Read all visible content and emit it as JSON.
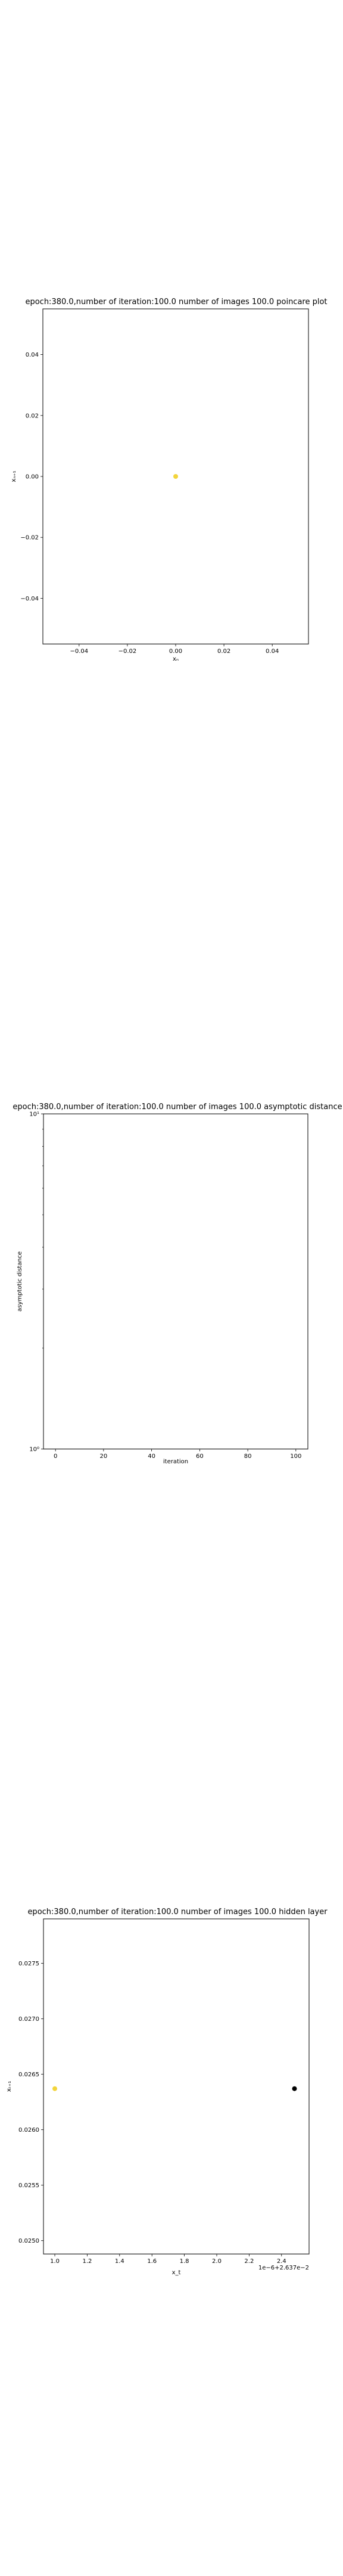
{
  "chart_data": [
    {
      "type": "scatter",
      "title": "epoch:380.0,number of iteration:100.0 number of images 100.0 poincare plot",
      "xlabel": "xₙ",
      "ylabel": "xₙ₊₁",
      "xlim": [
        -0.055,
        0.055
      ],
      "ylim": [
        -0.055,
        0.055
      ],
      "xticks": [
        -0.04,
        -0.02,
        0.0,
        0.02,
        0.04
      ],
      "xtick_labels": [
        "−0.04",
        "−0.02",
        "0.00",
        "0.02",
        "0.04"
      ],
      "yticks": [
        -0.04,
        -0.02,
        0.0,
        0.02,
        0.04
      ],
      "ytick_labels": [
        "−0.04",
        "−0.02",
        "0.00",
        "0.02",
        "0.04"
      ],
      "offset_text": "",
      "grid": false,
      "series": [
        {
          "points": [
            [
              0.0,
              0.0
            ]
          ],
          "color": "#f2d43b"
        }
      ]
    },
    {
      "type": "line",
      "title": "epoch:380.0,number of iteration:100.0  number of images 100.0 asymptotic distance",
      "xlabel": "iteration",
      "ylabel": "asymptotic distance",
      "xlim": [
        -5,
        105
      ],
      "yscale": "log",
      "ylim": [
        1,
        10
      ],
      "xticks": [
        0,
        20,
        40,
        60,
        80,
        100
      ],
      "xtick_labels": [
        "0",
        "20",
        "40",
        "60",
        "80",
        "100"
      ],
      "yticks": [
        1,
        10
      ],
      "ytick_labels": [
        "10⁰",
        "10¹"
      ],
      "offset_text": "",
      "grid": false,
      "series": []
    },
    {
      "type": "scatter",
      "title": "epoch:380.0,number of iteration:100.0  number of images 100.0 hidden layer",
      "xlabel": "x_t",
      "ylabel": "xₜ₊₁",
      "xlim": [
        0.93,
        2.57
      ],
      "ylim": [
        0.02488,
        0.0279
      ],
      "xticks": [
        1.0,
        1.2,
        1.4,
        1.6,
        1.8,
        2.0,
        2.2,
        2.4
      ],
      "xtick_labels": [
        "1.0",
        "1.2",
        "1.4",
        "1.6",
        "1.8",
        "2.0",
        "2.2",
        "2.4"
      ],
      "yticks": [
        0.025,
        0.0255,
        0.026,
        0.0265,
        0.027,
        0.0275
      ],
      "ytick_labels": [
        "0.0250",
        "0.0255",
        "0.0260",
        "0.0265",
        "0.0270",
        "0.0275"
      ],
      "offset_text": "1e−6+2.637e−2",
      "grid": false,
      "series": [
        {
          "points": [
            [
              1.0,
              0.02637
            ]
          ],
          "color": "#f2d43b"
        },
        {
          "points": [
            [
              2.48,
              0.02637
            ]
          ],
          "color": "#000000"
        }
      ]
    }
  ]
}
